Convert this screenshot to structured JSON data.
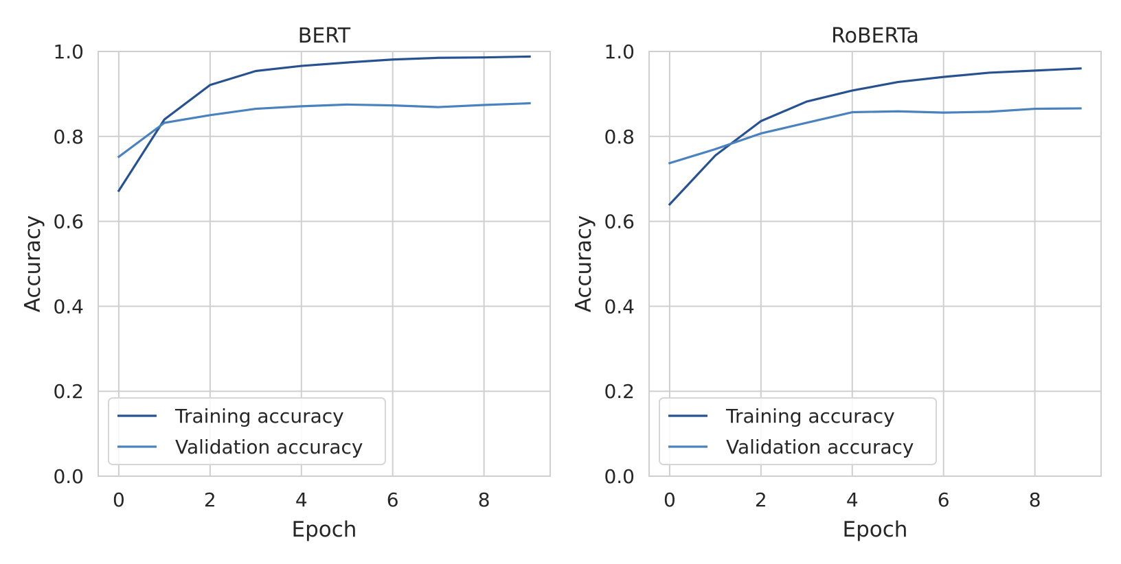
{
  "chart_data": [
    {
      "type": "line",
      "title": "BERT",
      "xlabel": "Epoch",
      "ylabel": "Accuracy",
      "xlim": [
        -0.45,
        9.45
      ],
      "ylim": [
        0.0,
        1.0
      ],
      "xticks": [
        0,
        2,
        4,
        6,
        8
      ],
      "yticks": [
        0.0,
        0.2,
        0.4,
        0.6,
        0.8,
        1.0
      ],
      "xtick_labels": [
        "0",
        "2",
        "4",
        "6",
        "8"
      ],
      "ytick_labels": [
        "0.0",
        "0.2",
        "0.4",
        "0.6",
        "0.8",
        "1.0"
      ],
      "grid": true,
      "legend_position": "lower-left",
      "x": [
        0,
        1,
        2,
        3,
        4,
        5,
        6,
        7,
        8,
        9
      ],
      "series": [
        {
          "name": "Training accuracy",
          "color": "#28528f",
          "values": [
            0.672,
            0.84,
            0.921,
            0.954,
            0.966,
            0.974,
            0.981,
            0.985,
            0.986,
            0.988
          ]
        },
        {
          "name": "Validation accuracy",
          "color": "#4a82bd",
          "values": [
            0.752,
            0.832,
            0.85,
            0.865,
            0.871,
            0.875,
            0.873,
            0.869,
            0.874,
            0.878
          ]
        }
      ]
    },
    {
      "type": "line",
      "title": "RoBERTa",
      "xlabel": "Epoch",
      "ylabel": "Accuracy",
      "xlim": [
        -0.45,
        9.45
      ],
      "ylim": [
        0.0,
        1.0
      ],
      "xticks": [
        0,
        2,
        4,
        6,
        8
      ],
      "yticks": [
        0.0,
        0.2,
        0.4,
        0.6,
        0.8,
        1.0
      ],
      "xtick_labels": [
        "0",
        "2",
        "4",
        "6",
        "8"
      ],
      "ytick_labels": [
        "0.0",
        "0.2",
        "0.4",
        "0.6",
        "0.8",
        "1.0"
      ],
      "grid": true,
      "legend_position": "lower-left",
      "x": [
        0,
        1,
        2,
        3,
        4,
        5,
        6,
        7,
        8,
        9
      ],
      "series": [
        {
          "name": "Training accuracy",
          "color": "#28528f",
          "values": [
            0.64,
            0.755,
            0.836,
            0.882,
            0.908,
            0.928,
            0.94,
            0.95,
            0.955,
            0.96
          ]
        },
        {
          "name": "Validation accuracy",
          "color": "#4a82bd",
          "values": [
            0.737,
            0.77,
            0.807,
            0.832,
            0.857,
            0.859,
            0.856,
            0.858,
            0.865,
            0.866
          ]
        }
      ]
    }
  ]
}
